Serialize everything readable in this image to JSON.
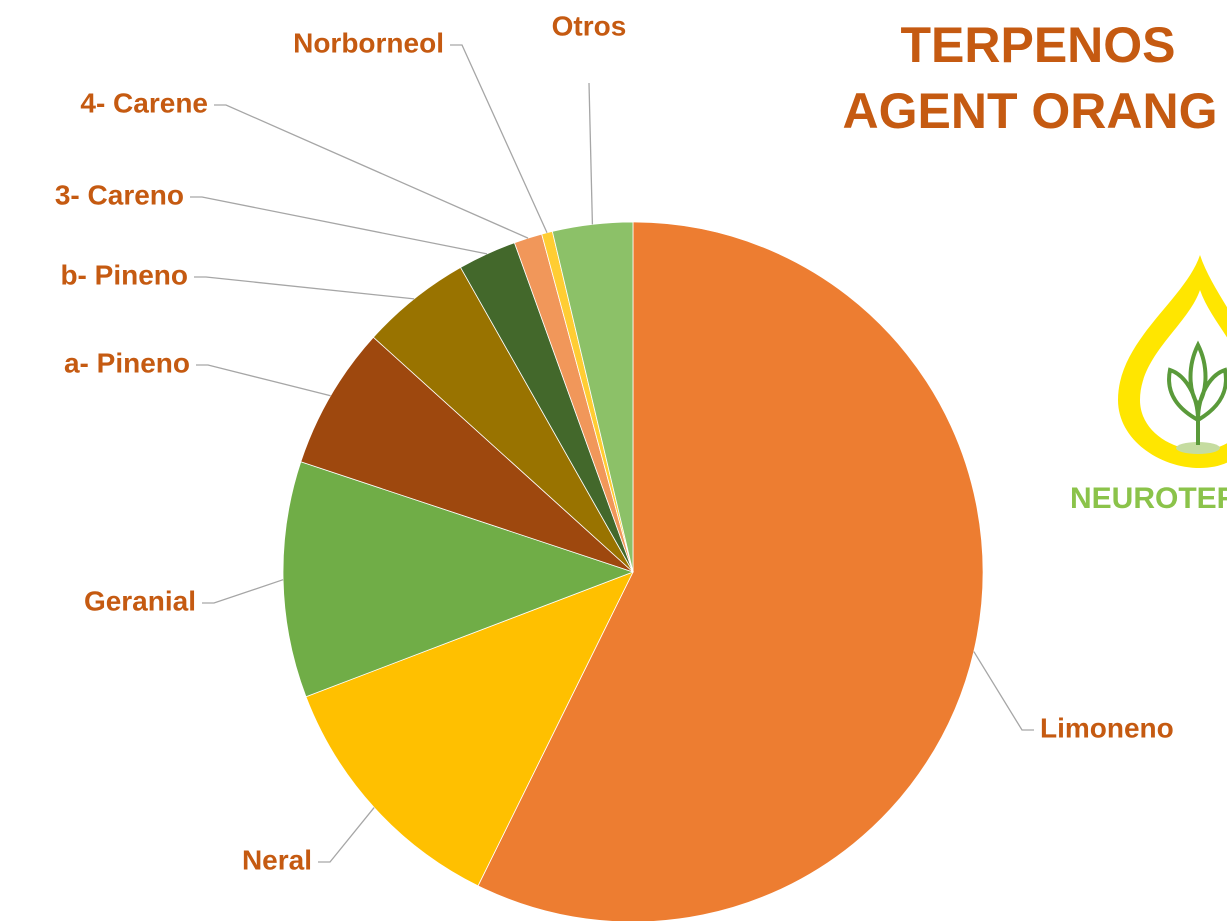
{
  "chart_data": {
    "type": "pie",
    "title": [
      "TERPENOS",
      "AGENT ORANG"
    ],
    "categories": [
      "Limoneno",
      "Neral",
      "Geranial",
      "a- Pineno",
      "b- Pineno",
      "3- Careno",
      "4- Carene",
      "Norborneol",
      "Otros"
    ],
    "values": [
      57.3,
      11.9,
      10.9,
      6.6,
      5.1,
      2.7,
      1.3,
      0.5,
      3.7
    ],
    "colors": [
      "#ed7d31",
      "#ffc000",
      "#70ad47",
      "#9e480e",
      "#997300",
      "#43682b",
      "#f1975a",
      "#ffcd33",
      "#8cc168"
    ]
  },
  "logo": {
    "text": "NEUROTER"
  }
}
